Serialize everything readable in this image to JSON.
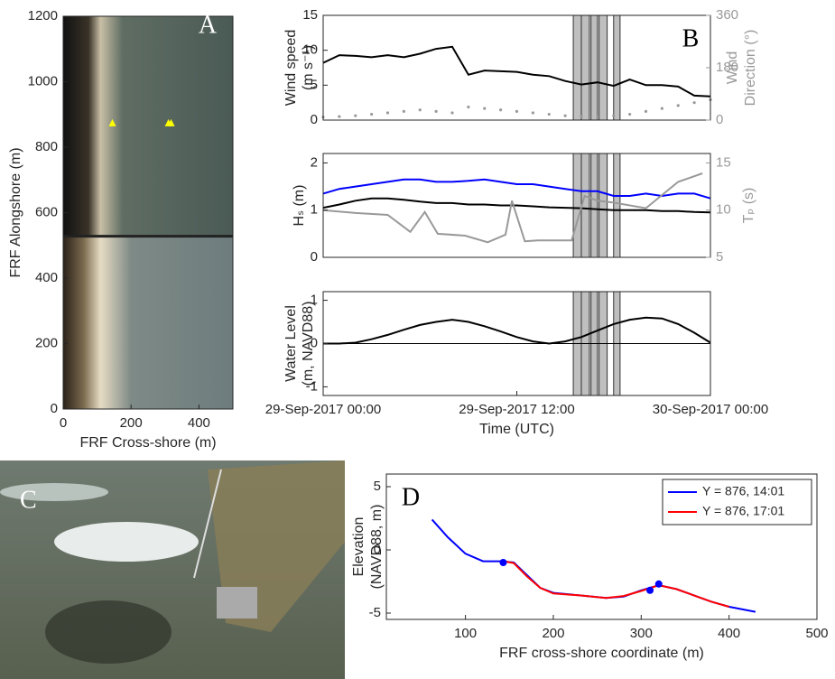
{
  "chart_data": [
    {
      "type": "image",
      "panel_label": "A",
      "xlabel": "FRF Cross-shore (m)",
      "ylabel": [
        "FRF Alongshore (m)"
      ],
      "xlim": [
        0,
        500
      ],
      "xticks": [
        0,
        200,
        400
      ],
      "ylim": [
        0,
        1200
      ],
      "yticks": [
        0,
        200,
        400,
        600,
        800,
        1000,
        1200
      ],
      "points": {
        "x": [
          145,
          310,
          318
        ],
        "y": [
          875,
          875,
          875
        ],
        "color": "#ffff00",
        "shape": "triangle"
      }
    },
    {
      "type": "line",
      "panel_label": "B",
      "ylabel": [
        "Wind speed",
        "(m s⁻¹)"
      ],
      "y2label": [
        "Wind",
        "Direction (°)"
      ],
      "x": [
        0,
        1,
        2,
        3,
        4,
        5,
        6,
        7,
        8,
        9,
        10,
        11,
        12,
        13,
        14,
        15,
        16,
        17,
        18,
        19,
        20,
        21,
        22,
        23,
        24
      ],
      "xlim": [
        0,
        24
      ],
      "ylim": [
        0,
        15
      ],
      "yticks": [
        0,
        5,
        10,
        15
      ],
      "y2lim": [
        0,
        360
      ],
      "y2ticks": [
        0,
        180,
        360
      ],
      "y2color": "#999999",
      "shaded": [
        [
          15.5,
          16.0
        ],
        [
          16.0,
          16.5
        ],
        [
          16.6,
          17.0
        ],
        [
          17.1,
          17.6
        ],
        [
          18.0,
          18.4
        ]
      ],
      "series": [
        {
          "color": "#000000",
          "values": [
            8.2,
            9.3,
            9.2,
            9.0,
            9.3,
            9.0,
            9.5,
            10.2,
            10.5,
            6.5,
            7.1,
            7.0,
            6.9,
            6.5,
            6.3,
            5.6,
            5.1,
            5.4,
            4.9,
            5.8,
            5.0,
            5.0,
            4.8,
            3.5,
            3.4
          ]
        },
        {
          "color": "#999999",
          "axis": "y2",
          "style": "dots",
          "values": [
            10,
            12,
            15,
            20,
            25,
            30,
            35,
            30,
            25,
            45,
            40,
            35,
            30,
            25,
            20,
            15,
            12,
            10,
            15,
            20,
            30,
            40,
            50,
            60,
            70
          ]
        }
      ]
    },
    {
      "type": "line",
      "ylabel": [
        "Hₛ (m)"
      ],
      "y2label": [
        "Tₚ (s)"
      ],
      "x": [
        0,
        1,
        2,
        3,
        4,
        5,
        6,
        7,
        8,
        9,
        10,
        11,
        12,
        13,
        14,
        15,
        16,
        17,
        18,
        19,
        20,
        21,
        22,
        23,
        24
      ],
      "xlim": [
        0,
        24
      ],
      "ylim": [
        0,
        2.2
      ],
      "yticks": [
        0,
        1,
        2
      ],
      "y2lim": [
        5,
        16
      ],
      "y2ticks": [
        5,
        10,
        15
      ],
      "y2color": "#999999",
      "shaded": [
        [
          15.5,
          16.0
        ],
        [
          16.0,
          16.5
        ],
        [
          16.6,
          17.0
        ],
        [
          17.1,
          17.6
        ],
        [
          18.0,
          18.4
        ]
      ],
      "series": [
        {
          "color": "#0000ff",
          "values": [
            1.35,
            1.45,
            1.5,
            1.55,
            1.6,
            1.65,
            1.65,
            1.6,
            1.6,
            1.62,
            1.65,
            1.6,
            1.55,
            1.55,
            1.5,
            1.45,
            1.4,
            1.4,
            1.3,
            1.3,
            1.35,
            1.3,
            1.35,
            1.35,
            1.25
          ]
        },
        {
          "color": "#000000",
          "values": [
            1.05,
            1.12,
            1.2,
            1.25,
            1.25,
            1.22,
            1.18,
            1.15,
            1.15,
            1.12,
            1.12,
            1.1,
            1.1,
            1.08,
            1.06,
            1.05,
            1.04,
            1.02,
            1.0,
            1.0,
            1.0,
            0.98,
            0.98,
            0.96,
            0.95
          ]
        },
        {
          "color": "#999999",
          "axis": "y2",
          "x": [
            0,
            2,
            4,
            5.4,
            6.3,
            7.1,
            8.8,
            10.2,
            11.3,
            11.7,
            12.5,
            13.3,
            15.4,
            16.2,
            17,
            18,
            20,
            22,
            23.5
          ],
          "values": [
            10,
            9.7,
            9.5,
            7.7,
            9.8,
            7.5,
            7.3,
            6.6,
            7.4,
            11,
            6.7,
            6.8,
            6.8,
            11.5,
            11,
            10.8,
            10.2,
            13,
            13.9
          ]
        }
      ]
    },
    {
      "type": "line",
      "ylabel": [
        "Water Level",
        "(m, NAVD88)"
      ],
      "xlabel": "Time (UTC)",
      "x": [
        0,
        1,
        2,
        3,
        4,
        5,
        6,
        7,
        8,
        9,
        10,
        11,
        12,
        13,
        14,
        15,
        16,
        17,
        18,
        19,
        20,
        21,
        22,
        23,
        24
      ],
      "xlim": [
        0,
        24
      ],
      "xticks": [
        {
          "value": 0,
          "label": "29-Sep-2017 00:00"
        },
        {
          "value": 12,
          "label": "29-Sep-2017 12:00"
        },
        {
          "value": 24,
          "label": "30-Sep-2017 00:00"
        }
      ],
      "ylim": [
        -1.2,
        1.2
      ],
      "yticks": [
        -1,
        0,
        1
      ],
      "hlines": [
        0
      ],
      "shaded": [
        [
          15.5,
          16.0
        ],
        [
          16.0,
          16.5
        ],
        [
          16.6,
          17.0
        ],
        [
          17.1,
          17.6
        ],
        [
          18.0,
          18.4
        ]
      ],
      "series": [
        {
          "color": "#000000",
          "values": [
            0,
            0,
            0.02,
            0.1,
            0.2,
            0.32,
            0.43,
            0.5,
            0.55,
            0.5,
            0.4,
            0.28,
            0.15,
            0.05,
            0,
            0.05,
            0.15,
            0.3,
            0.45,
            0.55,
            0.6,
            0.58,
            0.45,
            0.25,
            0.02
          ]
        }
      ]
    },
    {
      "type": "photo",
      "panel_label": "C"
    },
    {
      "type": "line",
      "panel_label": "D",
      "ylabel": [
        "Elevation",
        "(NAVD88, m)"
      ],
      "xlabel": "FRF cross-shore coordinate (m)",
      "xlim": [
        10,
        500
      ],
      "xticks": [
        100,
        200,
        300,
        400,
        500
      ],
      "ylim": [
        -5.5,
        6
      ],
      "yticks": [
        -5,
        0,
        5
      ],
      "legend": "upper right",
      "series": [
        {
          "name": "Y = 876, 14:01",
          "color": "#0000ff",
          "x": [
            62,
            80,
            100,
            120,
            140,
            155,
            170,
            185,
            200,
            230,
            260,
            280,
            300,
            320,
            340,
            360,
            380,
            400,
            430
          ],
          "values": [
            2.4,
            1.0,
            -0.3,
            -0.9,
            -0.9,
            -1.0,
            -2.0,
            -3.0,
            -3.4,
            -3.6,
            -3.8,
            -3.7,
            -3.2,
            -2.8,
            -3.1,
            -3.6,
            -4.1,
            -4.5,
            -4.9
          ]
        },
        {
          "name": "Y = 876, 17:01",
          "color": "#ff0000",
          "x": [
            140,
            155,
            170,
            185,
            200,
            230,
            260,
            280,
            300,
            320,
            340,
            360,
            380,
            400
          ],
          "values": [
            -0.85,
            -1.05,
            -2.1,
            -3.0,
            -3.45,
            -3.6,
            -3.8,
            -3.65,
            -3.25,
            -2.8,
            -3.1,
            -3.6,
            -4.1,
            -4.5
          ]
        }
      ],
      "points": {
        "x": [
          143,
          310,
          320
        ],
        "y": [
          -1.0,
          -3.2,
          -2.7
        ],
        "color": "#0000ff",
        "shape": "circle"
      }
    }
  ]
}
